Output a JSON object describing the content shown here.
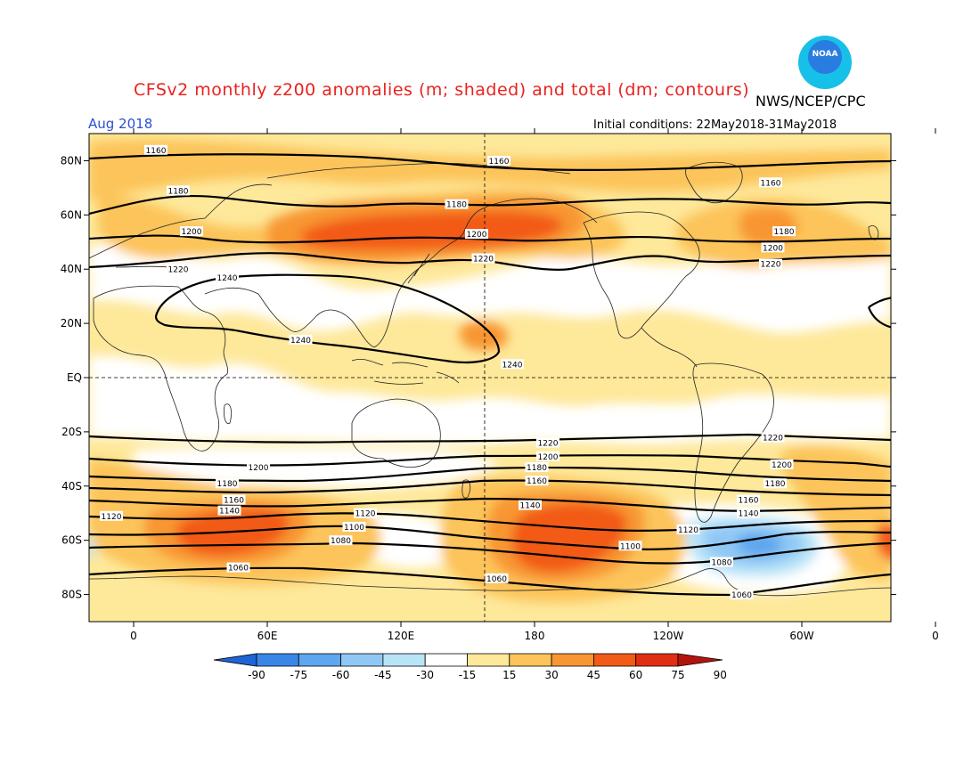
{
  "header": {
    "title": "CFSv2 monthly z200 anomalies (m; shaded) and total (dm; contours)",
    "credit": "NWS/NCEP/CPC",
    "month": "Aug 2018",
    "initial_conditions": "Initial conditions: 22May2018-31May2018",
    "logo_text": "NOAA"
  },
  "axes": {
    "lat_labels": [
      "80N",
      "60N",
      "40N",
      "20N",
      "EQ",
      "20S",
      "40S",
      "60S",
      "80S"
    ],
    "lon_labels": [
      "0",
      "60E",
      "120E",
      "180",
      "120W",
      "60W",
      "0"
    ]
  },
  "colorbar": {
    "labels": [
      "-90",
      "-75",
      "-60",
      "-45",
      "-30",
      "-15",
      "15",
      "30",
      "45",
      "60",
      "75",
      "90"
    ],
    "colors": [
      "#1f64d6",
      "#3a86e6",
      "#5ea6ef",
      "#90c8f5",
      "#b9e4f8",
      "#ffffff",
      "#fee89a",
      "#fcc45a",
      "#f89633",
      "#f25a17",
      "#e02e12",
      "#b3150e"
    ]
  },
  "contour_labels": [
    {
      "text": "1160",
      "lat": 84,
      "lon": 10
    },
    {
      "text": "1160",
      "lat": 80,
      "lon": 164
    },
    {
      "text": "1160",
      "lat": 72,
      "lon": 286
    },
    {
      "text": "1180",
      "lat": 69,
      "lon": 20
    },
    {
      "text": "1180",
      "lat": 64,
      "lon": 145
    },
    {
      "text": "1180",
      "lat": 54,
      "lon": 292
    },
    {
      "text": "1200",
      "lat": 54,
      "lon": 26
    },
    {
      "text": "1200",
      "lat": 53,
      "lon": 154
    },
    {
      "text": "1200",
      "lat": 48,
      "lon": 287
    },
    {
      "text": "1220",
      "lat": 40,
      "lon": 20
    },
    {
      "text": "1220",
      "lat": 44,
      "lon": 157
    },
    {
      "text": "1220",
      "lat": 42,
      "lon": 286
    },
    {
      "text": "1240",
      "lat": 37,
      "lon": 42
    },
    {
      "text": "1240",
      "lat": 14,
      "lon": 75
    },
    {
      "text": "1240",
      "lat": 5,
      "lon": 170
    },
    {
      "text": "1220",
      "lat": -24,
      "lon": 186
    },
    {
      "text": "1220",
      "lat": -22,
      "lon": 287
    },
    {
      "text": "1200",
      "lat": -29,
      "lon": 186
    },
    {
      "text": "1200",
      "lat": -33,
      "lon": 56
    },
    {
      "text": "1200",
      "lat": -32,
      "lon": 291
    },
    {
      "text": "1180",
      "lat": -33,
      "lon": 181
    },
    {
      "text": "1180",
      "lat": -39,
      "lon": 42
    },
    {
      "text": "1180",
      "lat": -39,
      "lon": 288
    },
    {
      "text": "1160",
      "lat": -38,
      "lon": 181
    },
    {
      "text": "1160",
      "lat": -45,
      "lon": 45
    },
    {
      "text": "1160",
      "lat": -45,
      "lon": 276
    },
    {
      "text": "1140",
      "lat": -49,
      "lon": 43
    },
    {
      "text": "1140",
      "lat": -47,
      "lon": 178
    },
    {
      "text": "1140",
      "lat": -50,
      "lon": 276
    },
    {
      "text": "1120",
      "lat": -51,
      "lon": -10
    },
    {
      "text": "1120",
      "lat": -50,
      "lon": 104
    },
    {
      "text": "1120",
      "lat": -56,
      "lon": 249
    },
    {
      "text": "1100",
      "lat": -55,
      "lon": 99
    },
    {
      "text": "1100",
      "lat": -62,
      "lon": 223
    },
    {
      "text": "1080",
      "lat": -60,
      "lon": 93
    },
    {
      "text": "1080",
      "lat": -68,
      "lon": 264
    },
    {
      "text": "1060",
      "lat": -70,
      "lon": 47
    },
    {
      "text": "1060",
      "lat": -74,
      "lon": 163
    },
    {
      "text": "1060",
      "lat": -80,
      "lon": 273
    }
  ]
}
